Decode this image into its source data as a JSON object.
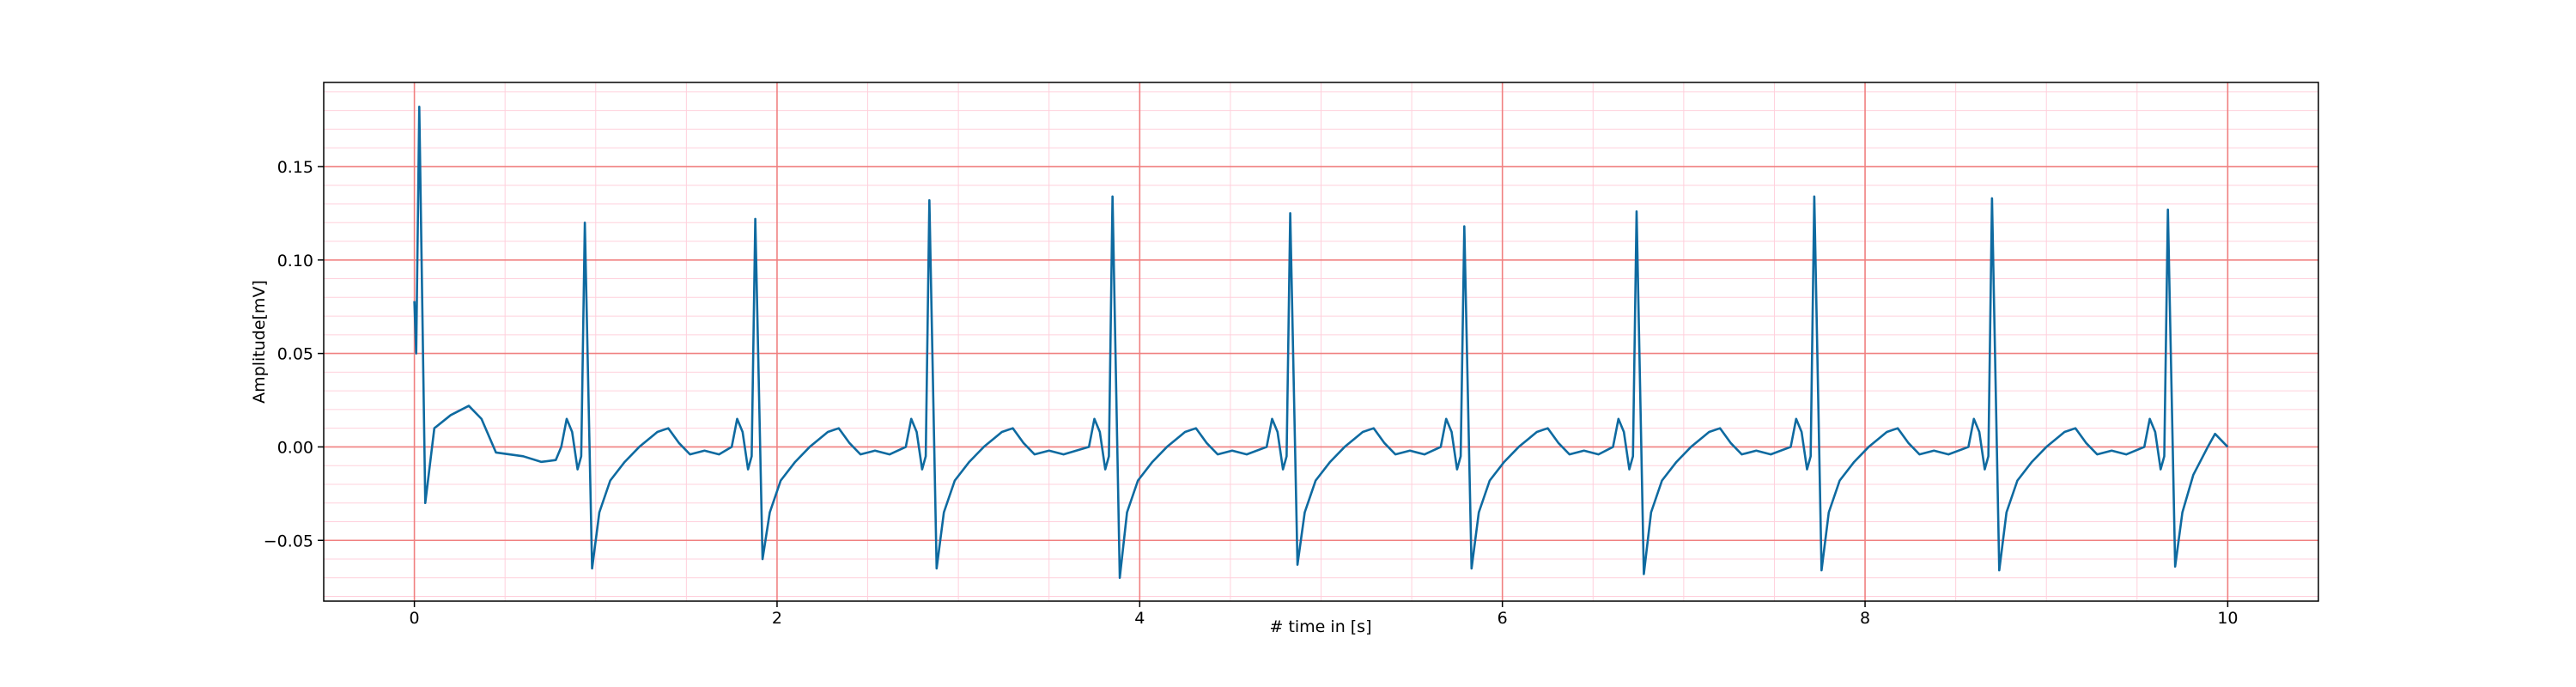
{
  "chart_data": {
    "type": "line",
    "xlabel": "# time in [s]",
    "ylabel": "Amplitude[mV]",
    "xlim": [
      -0.5,
      10.5
    ],
    "ylim": [
      -0.0825,
      0.195
    ],
    "xticks": [
      0,
      2,
      4,
      6,
      8,
      10
    ],
    "yticks": [
      {
        "value": -0.05,
        "label": "−0.05"
      },
      {
        "value": 0,
        "label": "0.00"
      },
      {
        "value": 0.05,
        "label": "0.05"
      },
      {
        "value": 0.1,
        "label": "0.10"
      },
      {
        "value": 0.15,
        "label": "0.15"
      }
    ],
    "xminorticks": [
      -0.5,
      0.5,
      1,
      1.5,
      2.5,
      3,
      3.5,
      4.5,
      5,
      5.5,
      6.5,
      7,
      7.5,
      8.5,
      9,
      9.5,
      10.5
    ],
    "yminorticks": [
      -0.08,
      -0.07,
      -0.06,
      -0.04,
      -0.03,
      -0.02,
      -0.01,
      0.01,
      0.02,
      0.03,
      0.04,
      0.06,
      0.07,
      0.08,
      0.09,
      0.11,
      0.12,
      0.13,
      0.14,
      0.16,
      0.17,
      0.18,
      0.19
    ],
    "grid": true,
    "major_grid_color": "#f08080",
    "minor_grid_color": "#ffd0dc",
    "series": [
      {
        "color": "#0e6aa0",
        "x": [
          0,
          0.01,
          0.027,
          0.06,
          0.11,
          0.2,
          0.3,
          0.37,
          0.45,
          0.6,
          0.7,
          0.78,
          0.81,
          0.84,
          0.87,
          0.9,
          0.92,
          0.94,
          0.98,
          1.02,
          1.08,
          1.16,
          1.24,
          1.34,
          1.4,
          1.46,
          1.52,
          1.6,
          1.68,
          1.75,
          1.78,
          1.81,
          1.84,
          1.86,
          1.88,
          1.92,
          1.96,
          2.02,
          2.1,
          2.18,
          2.28,
          2.34,
          2.4,
          2.46,
          2.54,
          2.62,
          2.71,
          2.74,
          2.77,
          2.8,
          2.82,
          2.84,
          2.88,
          2.92,
          2.98,
          3.06,
          3.14,
          3.24,
          3.3,
          3.36,
          3.42,
          3.5,
          3.58,
          3.72,
          3.75,
          3.78,
          3.81,
          3.83,
          3.85,
          3.89,
          3.93,
          3.99,
          4.07,
          4.15,
          4.25,
          4.31,
          4.37,
          4.43,
          4.51,
          4.59,
          4.7,
          4.73,
          4.76,
          4.79,
          4.81,
          4.83,
          4.87,
          4.91,
          4.97,
          5.05,
          5.13,
          5.23,
          5.29,
          5.35,
          5.41,
          5.49,
          5.57,
          5.66,
          5.69,
          5.72,
          5.75,
          5.77,
          5.79,
          5.83,
          5.87,
          5.93,
          6.01,
          6.09,
          6.19,
          6.25,
          6.31,
          6.37,
          6.45,
          6.53,
          6.61,
          6.64,
          6.67,
          6.7,
          6.72,
          6.74,
          6.78,
          6.82,
          6.88,
          6.96,
          7.04,
          7.14,
          7.2,
          7.26,
          7.32,
          7.4,
          7.48,
          7.59,
          7.62,
          7.65,
          7.68,
          7.7,
          7.72,
          7.76,
          7.8,
          7.86,
          7.94,
          8.02,
          8.12,
          8.18,
          8.24,
          8.3,
          8.38,
          8.46,
          8.57,
          8.6,
          8.63,
          8.66,
          8.68,
          8.7,
          8.74,
          8.78,
          8.84,
          8.92,
          9.0,
          9.1,
          9.16,
          9.22,
          9.28,
          9.36,
          9.44,
          9.54,
          9.57,
          9.6,
          9.63,
          9.65,
          9.67,
          9.71,
          9.75,
          9.81,
          9.89,
          9.93,
          10.0
        ],
        "values": [
          0.078,
          0.05,
          0.182,
          -0.03,
          0.01,
          0.017,
          0.022,
          0.015,
          -0.003,
          -0.005,
          -0.008,
          -0.007,
          0,
          0.015,
          0.008,
          -0.012,
          -0.005,
          0.12,
          -0.065,
          -0.035,
          -0.018,
          -0.008,
          0,
          0.008,
          0.01,
          0.002,
          -0.004,
          -0.002,
          -0.004,
          0,
          0.015,
          0.008,
          -0.012,
          -0.005,
          0.122,
          -0.06,
          -0.035,
          -0.018,
          -0.008,
          0,
          0.008,
          0.01,
          0.002,
          -0.004,
          -0.002,
          -0.004,
          0,
          0.015,
          0.008,
          -0.012,
          -0.005,
          0.132,
          -0.065,
          -0.035,
          -0.018,
          -0.008,
          0,
          0.008,
          0.01,
          0.002,
          -0.004,
          -0.002,
          -0.004,
          0,
          0.015,
          0.008,
          -0.012,
          -0.005,
          0.134,
          -0.07,
          -0.035,
          -0.018,
          -0.008,
          0,
          0.008,
          0.01,
          0.002,
          -0.004,
          -0.002,
          -0.004,
          0,
          0.015,
          0.008,
          -0.012,
          -0.005,
          0.125,
          -0.063,
          -0.035,
          -0.018,
          -0.008,
          0,
          0.008,
          0.01,
          0.002,
          -0.004,
          -0.002,
          -0.004,
          0,
          0.015,
          0.008,
          -0.012,
          -0.005,
          0.118,
          -0.065,
          -0.035,
          -0.018,
          -0.008,
          0,
          0.008,
          0.01,
          0.002,
          -0.004,
          -0.002,
          -0.004,
          0,
          0.015,
          0.008,
          -0.012,
          -0.005,
          0.126,
          -0.068,
          -0.035,
          -0.018,
          -0.008,
          0,
          0.008,
          0.01,
          0.002,
          -0.004,
          -0.002,
          -0.004,
          0,
          0.015,
          0.008,
          -0.012,
          -0.005,
          0.134,
          -0.066,
          -0.035,
          -0.018,
          -0.008,
          0,
          0.008,
          0.01,
          0.002,
          -0.004,
          -0.002,
          -0.004,
          0,
          0.015,
          0.008,
          -0.012,
          -0.005,
          0.133,
          -0.066,
          -0.035,
          -0.018,
          -0.008,
          0,
          0.008,
          0.01,
          0.002,
          -0.004,
          -0.002,
          -0.004,
          0,
          0.015,
          0.008,
          -0.012,
          -0.005,
          0.127,
          -0.064,
          -0.035,
          -0.015,
          0,
          0.007,
          0
        ]
      }
    ]
  }
}
